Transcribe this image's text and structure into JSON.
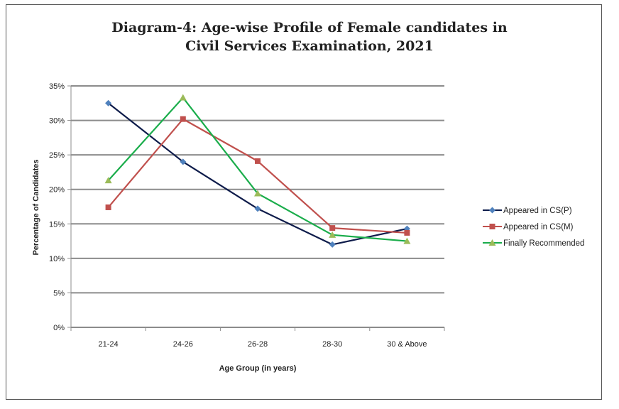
{
  "chart_data": {
    "type": "line",
    "title_line1": "Diagram-4:  Age-wise Profile of Female candidates in",
    "title_line2": "Civil Services Examination, 2021",
    "xlabel": "Age Group (in years)",
    "ylabel": "Percentage of Candidates",
    "categories": [
      "21-24",
      "24-26",
      "26-28",
      "28-30",
      "30 & Above"
    ],
    "ylim": [
      0,
      35
    ],
    "yticks": [
      0,
      5,
      10,
      15,
      20,
      25,
      30,
      35
    ],
    "ytick_labels": [
      "0%",
      "5%",
      "10%",
      "15%",
      "20%",
      "25%",
      "30%",
      "35%"
    ],
    "grid": true,
    "legend_position": "right",
    "series": [
      {
        "name": "Appeared in CS(P)",
        "values": [
          32.5,
          24.0,
          17.2,
          12.0,
          14.3
        ],
        "color": "#0d1b4a",
        "marker": "diamond",
        "marker_color": "#4f81bd"
      },
      {
        "name": "Appeared in CS(M)",
        "values": [
          17.4,
          30.2,
          24.1,
          14.4,
          13.7
        ],
        "color": "#c0504d",
        "marker": "square",
        "marker_color": "#c0504d"
      },
      {
        "name": "Finally Recommended",
        "values": [
          21.3,
          33.3,
          19.4,
          13.4,
          12.5
        ],
        "color": "#1aad4b",
        "marker": "triangle",
        "marker_color": "#9bbb59"
      }
    ]
  }
}
